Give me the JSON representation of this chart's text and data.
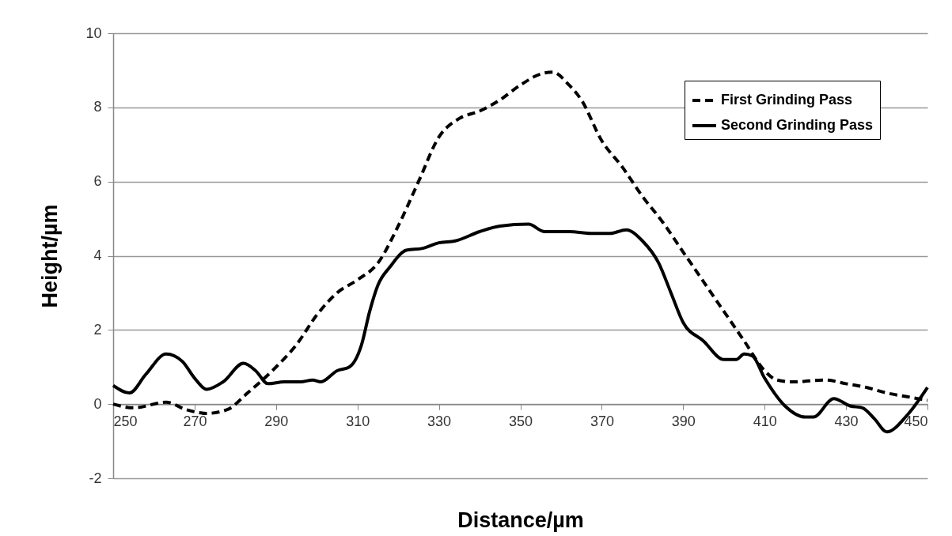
{
  "chart_data": {
    "type": "line",
    "xlabel": "Distance/µm",
    "ylabel": "Height/µm",
    "xlim": [
      250,
      450
    ],
    "xticks": [
      250,
      270,
      290,
      310,
      330,
      350,
      370,
      390,
      410,
      430,
      450
    ],
    "ylim": [
      -2,
      10
    ],
    "yticks": [
      -2,
      0,
      2,
      4,
      6,
      8,
      10
    ],
    "grid": "y",
    "legend": "top right",
    "series": [
      {
        "name": "First Grinding Pass",
        "color": "#000000",
        "line_style": "dashed",
        "x": [
          250,
          255,
          263,
          268,
          273,
          278,
          283,
          290,
          295,
          300,
          305,
          310,
          315,
          320,
          325,
          330,
          335,
          340,
          345,
          350,
          355,
          358,
          362,
          365,
          370,
          375,
          380,
          385,
          390,
          395,
          400,
          405,
          410,
          413,
          417,
          425,
          430,
          435,
          440,
          445,
          450
        ],
        "values": [
          0.0,
          -0.1,
          0.05,
          -0.15,
          -0.25,
          -0.15,
          0.3,
          1.0,
          1.6,
          2.4,
          3.0,
          3.35,
          3.8,
          4.8,
          6.0,
          7.2,
          7.7,
          7.9,
          8.2,
          8.6,
          8.9,
          8.95,
          8.6,
          8.2,
          7.1,
          6.4,
          5.6,
          4.9,
          4.1,
          3.3,
          2.5,
          1.7,
          0.9,
          0.65,
          0.6,
          0.65,
          0.55,
          0.45,
          0.3,
          0.2,
          0.1
        ]
      },
      {
        "name": "Second Grinding Pass",
        "color": "#000000",
        "line_style": "solid",
        "x": [
          250,
          254,
          258,
          263,
          267,
          270,
          273,
          277,
          282,
          285,
          288,
          292,
          296,
          299,
          301,
          305,
          308,
          311,
          313,
          315,
          318,
          322,
          326,
          330,
          334,
          340,
          345,
          352,
          356,
          362,
          368,
          372,
          376,
          380,
          384,
          387,
          390,
          395,
          400,
          403,
          405,
          407,
          410,
          415,
          420,
          422,
          427,
          431,
          434,
          437,
          440,
          445,
          450
        ],
        "values": [
          0.5,
          0.3,
          0.8,
          1.35,
          1.15,
          0.7,
          0.4,
          0.6,
          1.1,
          0.9,
          0.55,
          0.6,
          0.6,
          0.65,
          0.6,
          0.9,
          1.0,
          1.6,
          2.5,
          3.2,
          3.7,
          4.15,
          4.2,
          4.35,
          4.4,
          4.65,
          4.8,
          4.85,
          4.65,
          4.65,
          4.6,
          4.6,
          4.7,
          4.4,
          3.8,
          3.0,
          2.2,
          1.7,
          1.2,
          1.2,
          1.35,
          1.3,
          0.7,
          -0.05,
          -0.35,
          -0.35,
          0.15,
          -0.05,
          -0.1,
          -0.4,
          -0.75,
          -0.3,
          0.45
        ]
      }
    ]
  }
}
